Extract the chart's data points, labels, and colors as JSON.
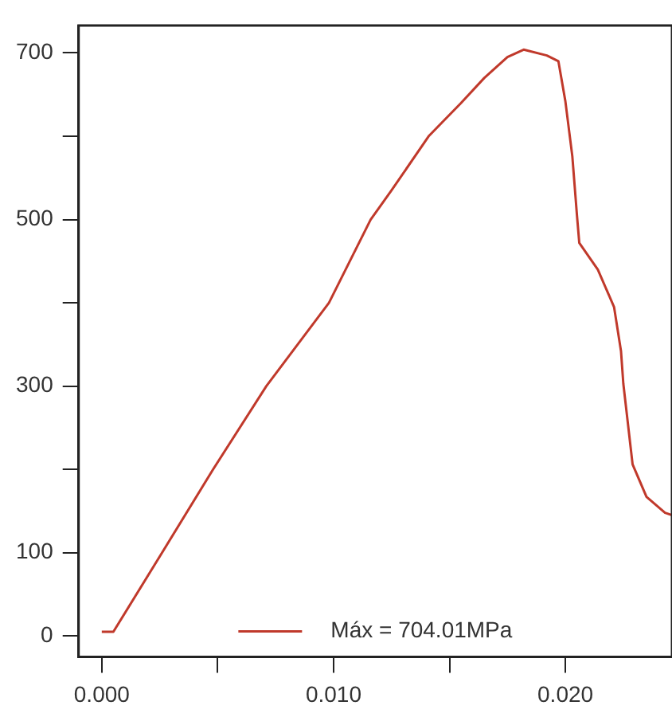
{
  "chart_data": {
    "type": "line",
    "x": [
      0,
      0.0005,
      0.0026,
      0.0048,
      0.0071,
      0.0098,
      0.0116,
      0.0125,
      0.0141,
      0.0155,
      0.0165,
      0.0175,
      0.0182,
      0.0192,
      0.0197,
      0.02,
      0.0203,
      0.0205,
      0.0206,
      0.0214,
      0.0221,
      0.0224,
      0.0225,
      0.0229,
      0.0235,
      0.0243,
      0.0246
    ],
    "series": [
      {
        "name": "Máx = 704.01MPa",
        "color": "#c0392b",
        "values": [
          5,
          5,
          100,
          200,
          300,
          400,
          500,
          535,
          600,
          640,
          670,
          695,
          704.01,
          697,
          690,
          642,
          576,
          505,
          472,
          440,
          395,
          342,
          303,
          206,
          167,
          148,
          145
        ]
      }
    ],
    "xlim": [
      -0.001,
      0.0246
    ],
    "ylim": [
      -25,
      733
    ],
    "xticks": [
      {
        "value": 0,
        "label": "0.000"
      },
      {
        "value": 0.005,
        "label": null
      },
      {
        "value": 0.01,
        "label": "0.010"
      },
      {
        "value": 0.015,
        "label": null
      },
      {
        "value": 0.02,
        "label": "0.020"
      }
    ],
    "yticks": [
      0,
      100,
      {
        "value": 200,
        "label": null
      },
      300,
      {
        "value": 400,
        "label": null
      },
      500,
      {
        "value": 600,
        "label": null
      },
      700
    ],
    "grid": false,
    "legend": "bottom",
    "marker": "none",
    "line_style": "solid"
  }
}
